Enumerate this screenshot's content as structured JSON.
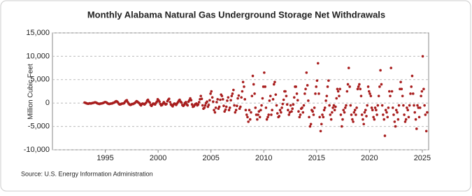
{
  "chart_data": {
    "type": "scatter",
    "title": "Monthly Alabama Natural Gas Underground Storage Net Withdrawals",
    "y_label": "Million Cubic Feet",
    "source": "Source: U.S. Energy Information Administration",
    "color": "#a81e1e",
    "grid": true,
    "xlim": [
      1990.0,
      2025.6
    ],
    "ylim": [
      -10000,
      15000
    ],
    "xticks": [
      1995,
      2000,
      2005,
      2010,
      2015,
      2020,
      2025
    ],
    "yticks": [
      {
        "value": -10000,
        "label": "-10,000"
      },
      {
        "value": -5000,
        "label": "-5,000"
      },
      0,
      {
        "value": 5000,
        "label": "5,000"
      },
      {
        "value": 10000,
        "label": "10,000"
      },
      {
        "value": 15000,
        "label": "15,000"
      }
    ],
    "x": [
      1993.04,
      1993.13,
      1993.21,
      1993.29,
      1993.38,
      1993.46,
      1993.54,
      1993.63,
      1993.71,
      1993.79,
      1993.88,
      1993.96,
      1994.04,
      1994.13,
      1994.21,
      1994.29,
      1994.38,
      1994.46,
      1994.54,
      1994.63,
      1994.71,
      1994.79,
      1994.88,
      1994.96,
      1995.04,
      1995.13,
      1995.21,
      1995.29,
      1995.38,
      1995.46,
      1995.54,
      1995.63,
      1995.71,
      1995.79,
      1995.88,
      1995.96,
      1996.04,
      1996.13,
      1996.21,
      1996.29,
      1996.38,
      1996.46,
      1996.54,
      1996.63,
      1996.71,
      1996.79,
      1996.88,
      1996.96,
      1997.04,
      1997.13,
      1997.21,
      1997.29,
      1997.38,
      1997.46,
      1997.54,
      1997.63,
      1997.71,
      1997.79,
      1997.88,
      1997.96,
      1998.04,
      1998.13,
      1998.21,
      1998.29,
      1998.38,
      1998.46,
      1998.54,
      1998.63,
      1998.71,
      1998.79,
      1998.88,
      1998.96,
      1999.04,
      1999.13,
      1999.21,
      1999.29,
      1999.38,
      1999.46,
      1999.54,
      1999.63,
      1999.71,
      1999.79,
      1999.88,
      1999.96,
      2000.04,
      2000.13,
      2000.21,
      2000.29,
      2000.38,
      2000.46,
      2000.54,
      2000.63,
      2000.71,
      2000.79,
      2000.88,
      2000.96,
      2001.04,
      2001.13,
      2001.21,
      2001.29,
      2001.38,
      2001.46,
      2001.54,
      2001.63,
      2001.71,
      2001.79,
      2001.88,
      2001.96,
      2002.04,
      2002.13,
      2002.21,
      2002.29,
      2002.38,
      2002.46,
      2002.54,
      2002.63,
      2002.71,
      2002.79,
      2002.88,
      2002.96,
      2003.04,
      2003.13,
      2003.21,
      2003.29,
      2003.38,
      2003.46,
      2003.54,
      2003.63,
      2003.71,
      2003.79,
      2003.88,
      2003.96,
      2004.04,
      2004.13,
      2004.21,
      2004.29,
      2004.38,
      2004.46,
      2004.54,
      2004.63,
      2004.71,
      2004.79,
      2004.88,
      2004.96,
      2005.04,
      2005.13,
      2005.21,
      2005.29,
      2005.38,
      2005.46,
      2005.54,
      2005.63,
      2005.71,
      2005.79,
      2005.88,
      2005.96,
      2006.04,
      2006.13,
      2006.21,
      2006.29,
      2006.38,
      2006.46,
      2006.54,
      2006.63,
      2006.71,
      2006.79,
      2006.88,
      2006.96,
      2007.04,
      2007.13,
      2007.21,
      2007.29,
      2007.38,
      2007.46,
      2007.54,
      2007.63,
      2007.71,
      2007.79,
      2007.88,
      2007.96,
      2008.04,
      2008.13,
      2008.21,
      2008.29,
      2008.38,
      2008.46,
      2008.54,
      2008.63,
      2008.71,
      2008.79,
      2008.88,
      2008.96,
      2009.04,
      2009.13,
      2009.21,
      2009.29,
      2009.38,
      2009.46,
      2009.54,
      2009.63,
      2009.71,
      2009.79,
      2009.88,
      2009.96,
      2010.04,
      2010.13,
      2010.21,
      2010.29,
      2010.38,
      2010.46,
      2010.54,
      2010.63,
      2010.71,
      2010.79,
      2010.88,
      2010.96,
      2011.04,
      2011.13,
      2011.21,
      2011.29,
      2011.38,
      2011.46,
      2011.54,
      2011.63,
      2011.71,
      2011.79,
      2011.88,
      2011.96,
      2012.04,
      2012.13,
      2012.21,
      2012.29,
      2012.38,
      2012.46,
      2012.54,
      2012.63,
      2012.71,
      2012.79,
      2012.88,
      2012.96,
      2013.04,
      2013.13,
      2013.21,
      2013.29,
      2013.38,
      2013.46,
      2013.54,
      2013.63,
      2013.71,
      2013.79,
      2013.88,
      2013.96,
      2014.04,
      2014.13,
      2014.21,
      2014.29,
      2014.38,
      2014.46,
      2014.54,
      2014.63,
      2014.71,
      2014.79,
      2014.88,
      2014.96,
      2015.04,
      2015.13,
      2015.21,
      2015.29,
      2015.38,
      2015.46,
      2015.54,
      2015.63,
      2015.71,
      2015.79,
      2015.88,
      2015.96,
      2016.04,
      2016.13,
      2016.21,
      2016.29,
      2016.38,
      2016.46,
      2016.54,
      2016.63,
      2016.71,
      2016.79,
      2016.88,
      2016.96,
      2017.04,
      2017.13,
      2017.21,
      2017.29,
      2017.38,
      2017.46,
      2017.54,
      2017.63,
      2017.71,
      2017.79,
      2017.88,
      2017.96,
      2018.04,
      2018.13,
      2018.21,
      2018.29,
      2018.38,
      2018.46,
      2018.54,
      2018.63,
      2018.71,
      2018.79,
      2018.88,
      2018.96,
      2019.04,
      2019.13,
      2019.21,
      2019.29,
      2019.38,
      2019.46,
      2019.54,
      2019.63,
      2019.71,
      2019.79,
      2019.88,
      2019.96,
      2020.04,
      2020.13,
      2020.21,
      2020.29,
      2020.38,
      2020.46,
      2020.54,
      2020.63,
      2020.71,
      2020.79,
      2020.88,
      2020.96,
      2021.04,
      2021.13,
      2021.21,
      2021.29,
      2021.38,
      2021.46,
      2021.54,
      2021.63,
      2021.71,
      2021.79,
      2021.88,
      2021.96,
      2022.04,
      2022.13,
      2022.21,
      2022.29,
      2022.38,
      2022.46,
      2022.54,
      2022.63,
      2022.71,
      2022.79,
      2022.88,
      2022.96,
      2023.04,
      2023.13,
      2023.21,
      2023.29,
      2023.38,
      2023.46,
      2023.54,
      2023.63,
      2023.71,
      2023.79,
      2023.88,
      2023.96,
      2024.04,
      2024.13,
      2024.21,
      2024.29,
      2024.38,
      2024.46,
      2024.54,
      2024.63,
      2024.71,
      2024.79,
      2024.88,
      2024.96,
      2025.04,
      2025.13,
      2025.21,
      2025.29,
      2025.38,
      2025.46
    ],
    "values": [
      100,
      50,
      -50,
      -100,
      -150,
      -100,
      -50,
      -100,
      -50,
      0,
      50,
      100,
      150,
      100,
      0,
      -100,
      -150,
      -200,
      -100,
      -100,
      -50,
      0,
      100,
      200,
      200,
      100,
      -50,
      -150,
      -200,
      -150,
      -100,
      -100,
      0,
      50,
      150,
      300,
      400,
      300,
      100,
      -200,
      -300,
      -250,
      -150,
      -100,
      -100,
      0,
      300,
      500,
      600,
      200,
      -100,
      -300,
      -400,
      -300,
      -200,
      -200,
      -100,
      0,
      200,
      400,
      300,
      100,
      0,
      -300,
      -500,
      -200,
      -100,
      -200,
      -300,
      -100,
      100,
      500,
      700,
      300,
      100,
      -400,
      -600,
      -300,
      -100,
      -200,
      -300,
      0,
      300,
      800,
      600,
      300,
      -200,
      -500,
      -400,
      -100,
      200,
      -100,
      -300,
      -200,
      400,
      700,
      900,
      200,
      -300,
      -500,
      -700,
      -300,
      -100,
      -200,
      -400,
      -100,
      200,
      500,
      700,
      300,
      100,
      -400,
      -600,
      -400,
      0,
      200,
      -300,
      -500,
      300,
      600,
      1000,
      600,
      -300,
      -800,
      -700,
      -400,
      -200,
      -100,
      -500,
      -300,
      200,
      800,
      1500,
      900,
      -500,
      -1200,
      -1000,
      -500,
      0,
      300,
      -800,
      -400,
      600,
      2000,
      2500,
      1200,
      300,
      -1500,
      -2000,
      -1000,
      200,
      800,
      -1200,
      -800,
      700,
      1800,
      1500,
      800,
      -600,
      -1800,
      -1400,
      -800,
      500,
      1200,
      -1500,
      -1000,
      600,
      1500,
      2000,
      2800,
      -500,
      -2000,
      -1500,
      -600,
      1000,
      1600,
      -1200,
      -800,
      1200,
      2500,
      4500,
      3500,
      800,
      -1500,
      -2500,
      -3000,
      -4000,
      -1500,
      -3500,
      -2000,
      1500,
      5800,
      4000,
      2000,
      -1000,
      -2500,
      -3500,
      -2500,
      -1800,
      -3000,
      -1500,
      -500,
      1000,
      3500,
      6500,
      3500,
      -1000,
      -3500,
      -3000,
      -2500,
      500,
      1500,
      -2500,
      -1500,
      800,
      4000,
      4500,
      1800,
      -500,
      -2200,
      -3000,
      -2800,
      -1500,
      -2000,
      -1000,
      -200,
      700,
      2500,
      2500,
      1500,
      -300,
      -1500,
      -2500,
      -2000,
      -500,
      -1800,
      -1200,
      -300,
      1200,
      3500,
      3500,
      2000,
      600,
      -1800,
      -3000,
      -2500,
      -1200,
      -1000,
      -2000,
      -500,
      2000,
      3000,
      6500,
      3800,
      500,
      -3000,
      -5000,
      -4500,
      -1500,
      -1800,
      -2500,
      -1000,
      2000,
      3500,
      4800,
      8500,
      2000,
      -3000,
      -6000,
      -4500,
      -2500,
      -3000,
      -1500,
      -1000,
      500,
      1500,
      3500,
      4800,
      -500,
      -2500,
      -3500,
      -2000,
      -1000,
      -500,
      -1500,
      -800,
      1000,
      3000,
      2500,
      1500,
      3000,
      -2500,
      -5000,
      -3500,
      -1500,
      -2000,
      -1000,
      -500,
      2500,
      4000,
      7500,
      3500,
      -500,
      -2500,
      -3500,
      -4000,
      -2000,
      -1500,
      -2500,
      -1000,
      3000,
      3500,
      4000,
      3000,
      1500,
      -2500,
      -3500,
      -4500,
      -2000,
      -1500,
      -2800,
      -500,
      3500,
      2500,
      2000,
      1500,
      -1000,
      -1500,
      -3000,
      -3500,
      -1000,
      -1500,
      -2500,
      -500,
      1500,
      3500,
      7000,
      4000,
      -500,
      -2500,
      -3500,
      -7000,
      -1500,
      -2000,
      -3000,
      -1000,
      2500,
      1500,
      7500,
      2500,
      -1000,
      -2500,
      -4000,
      -5000,
      -1500,
      -2000,
      -3500,
      -500,
      3000,
      4500,
      3000,
      1500,
      -500,
      -2500,
      -4000,
      -3500,
      -1000,
      -1500,
      -3000,
      -500,
      2000,
      3500,
      5800,
      2000,
      -500,
      -2000,
      -3500,
      -5500,
      -500,
      -1000,
      -3000,
      -1000,
      1500,
      2500,
      10000,
      3000,
      -500,
      -2500,
      -6000,
      -2000
    ]
  }
}
